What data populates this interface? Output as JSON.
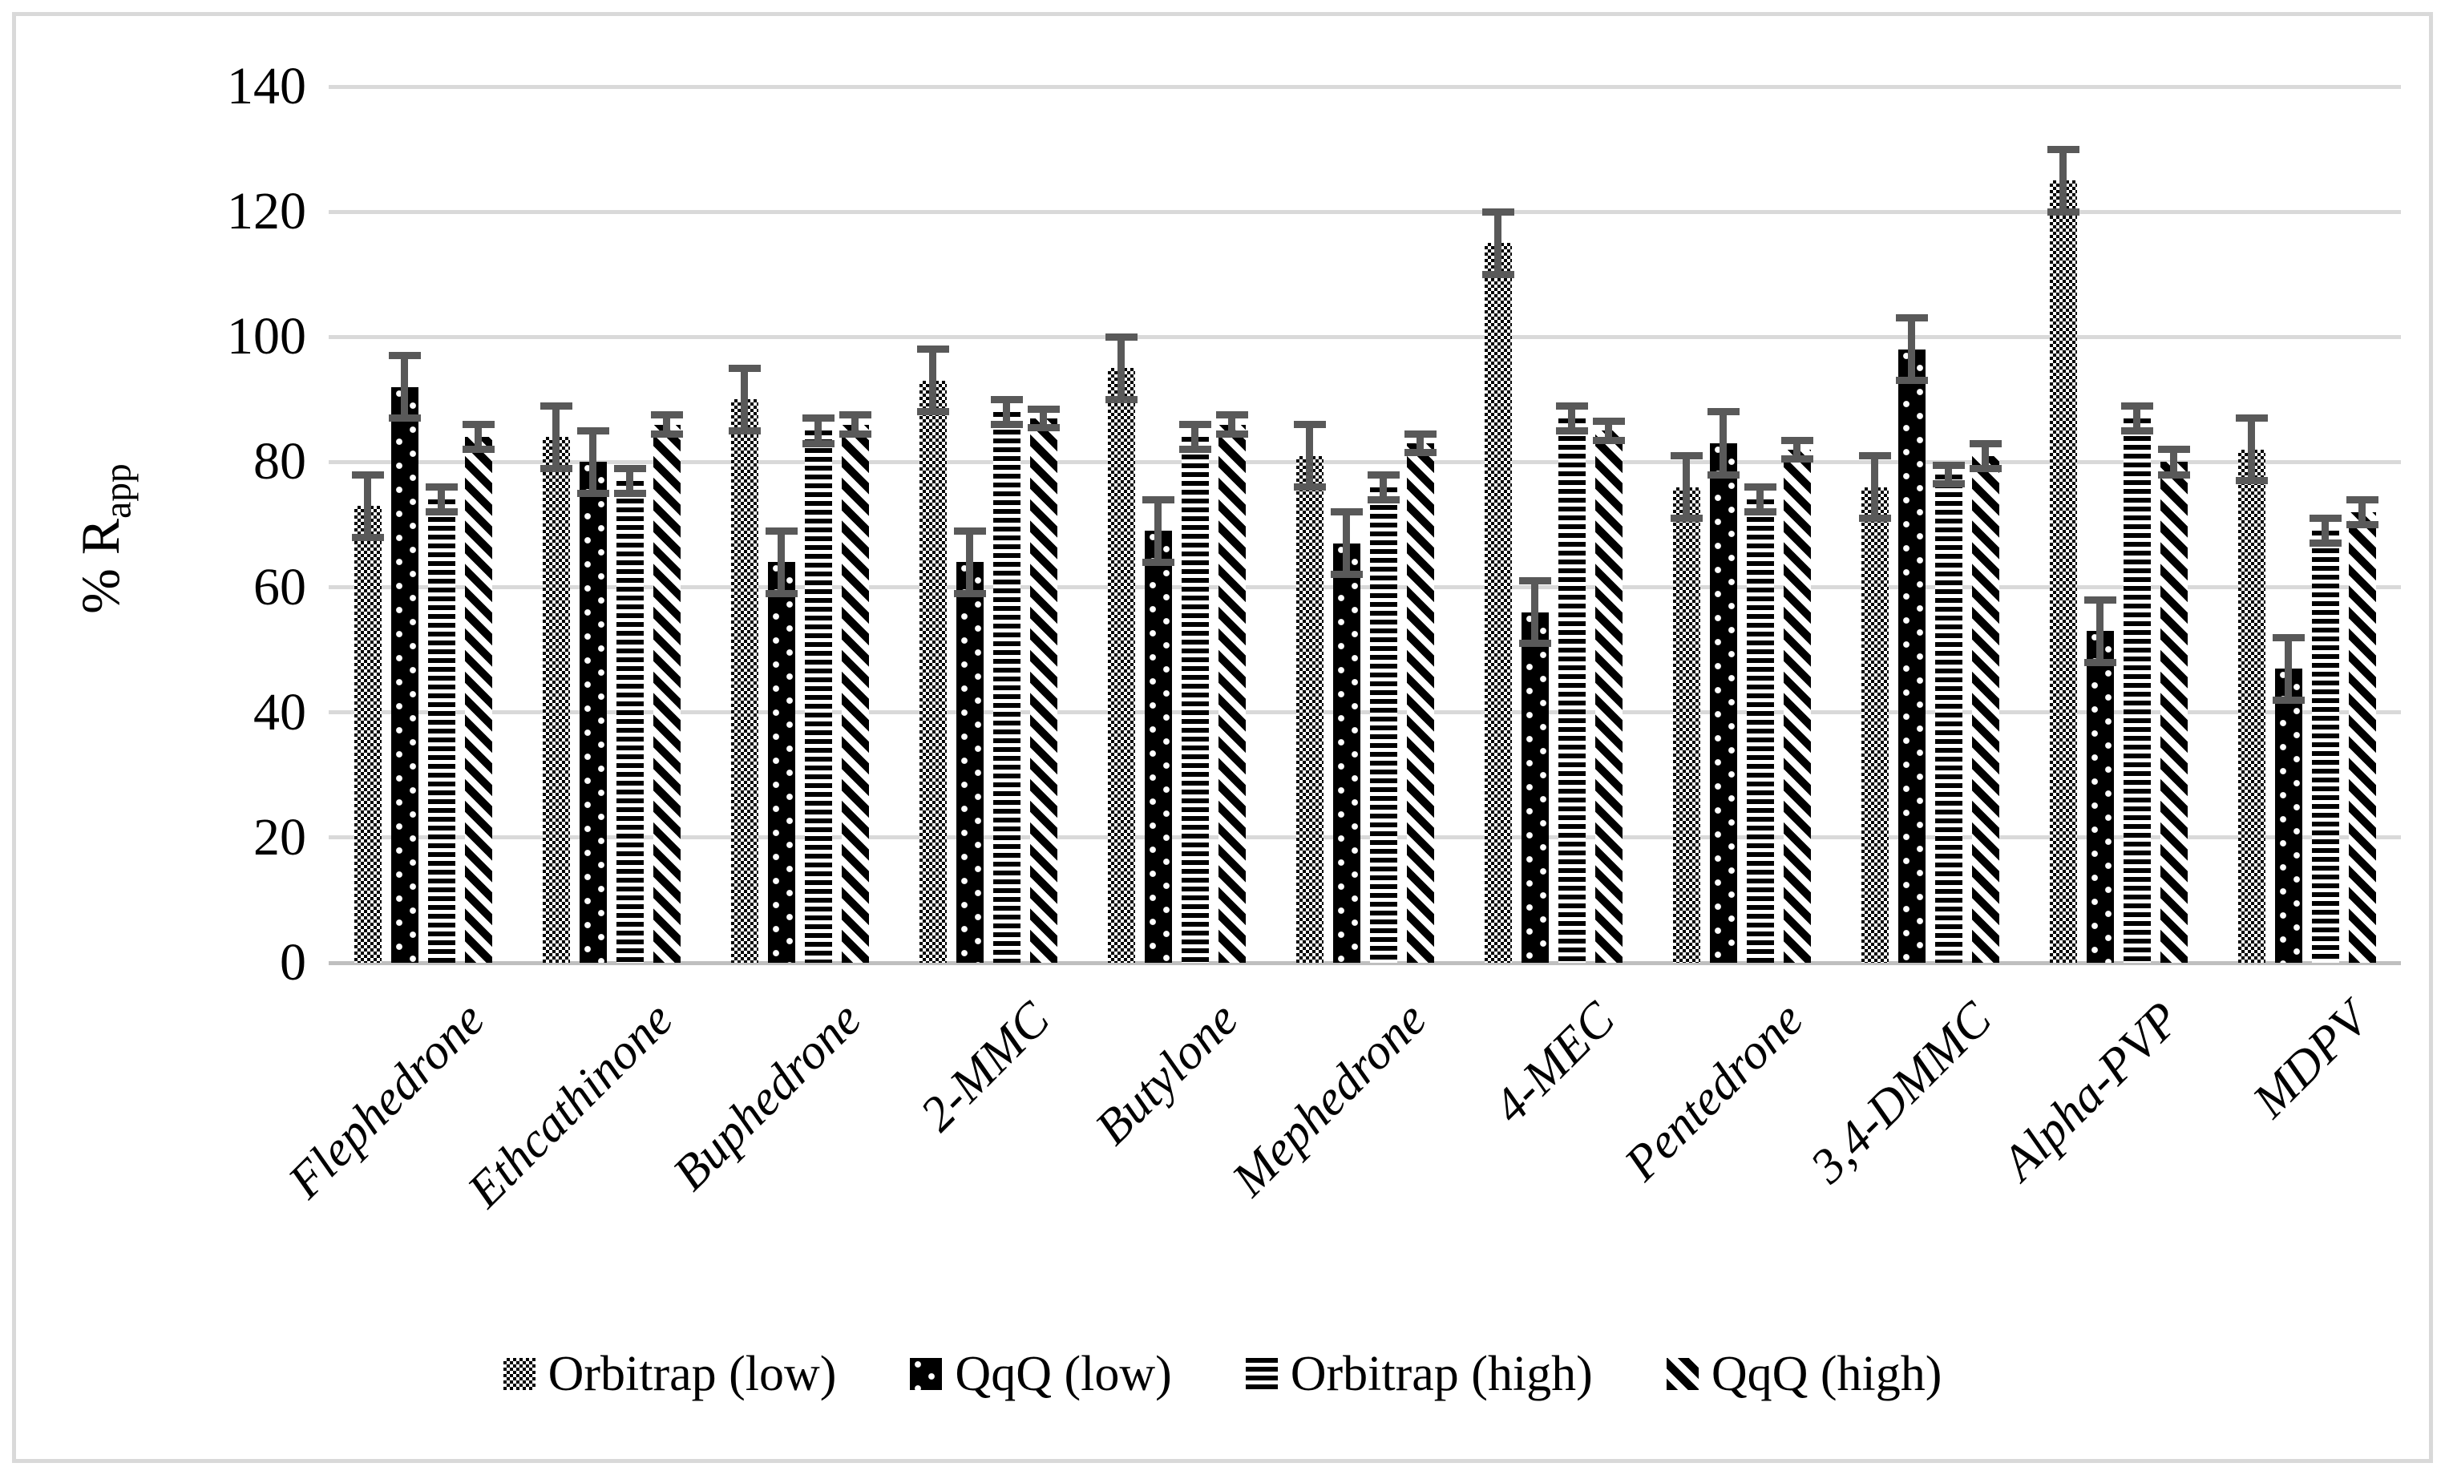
{
  "chart_data": {
    "type": "bar",
    "title": "",
    "xlabel": "",
    "ylabel": {
      "prefix": "% R",
      "subscript": "app"
    },
    "ylim": [
      0,
      140
    ],
    "ytick_step": 20,
    "yticks": [
      0,
      20,
      40,
      60,
      80,
      100,
      120,
      140
    ],
    "grid": true,
    "legend_position": "bottom",
    "error_bars": true,
    "categories": [
      "Flephedrone",
      "Ethcathinone",
      "Buphedrone",
      "2-MMC",
      "Butylone",
      "Mephedrone",
      "4-MEC",
      "Pentedrone",
      "3,4-DMMC",
      "Alpha-PVP",
      "MDPV"
    ],
    "series": [
      {
        "name": "Orbitrap (low)",
        "pattern": "small-checkerboard",
        "values": [
          73,
          84,
          90,
          93,
          95,
          81,
          115,
          76,
          76,
          125,
          82
        ],
        "errors": [
          5,
          5,
          5,
          5,
          5,
          5,
          5,
          5,
          5,
          5,
          5
        ]
      },
      {
        "name": "QqQ (low)",
        "pattern": "black-with-white-dots",
        "values": [
          92,
          80,
          64,
          64,
          69,
          67,
          56,
          83,
          98,
          53,
          47
        ],
        "errors": [
          5,
          5,
          5,
          5,
          5,
          5,
          5,
          5,
          5,
          5,
          5
        ]
      },
      {
        "name": "Orbitrap (high)",
        "pattern": "horizontal-stripes",
        "values": [
          74,
          77,
          85,
          88,
          84,
          76,
          87,
          74,
          78,
          87,
          69
        ],
        "errors": [
          2,
          2,
          2,
          2,
          2,
          2,
          2,
          2,
          1.5,
          2,
          2
        ]
      },
      {
        "name": "QqQ (high)",
        "pattern": "diagonal-stripes",
        "values": [
          84,
          86,
          86,
          87,
          86,
          83,
          85,
          82,
          81,
          80,
          72
        ],
        "errors": [
          2,
          1.5,
          1.5,
          1.5,
          1.5,
          1.5,
          1.5,
          1.5,
          2,
          2,
          2
        ]
      }
    ],
    "colors": {
      "bar_fill": "#000000",
      "background": "#ffffff",
      "gridline": "#d9d9d9",
      "axis_line": "#bfbfbf",
      "error_bar": "#595959",
      "outer_border": "#d9d9d9",
      "text": "#000000"
    }
  }
}
